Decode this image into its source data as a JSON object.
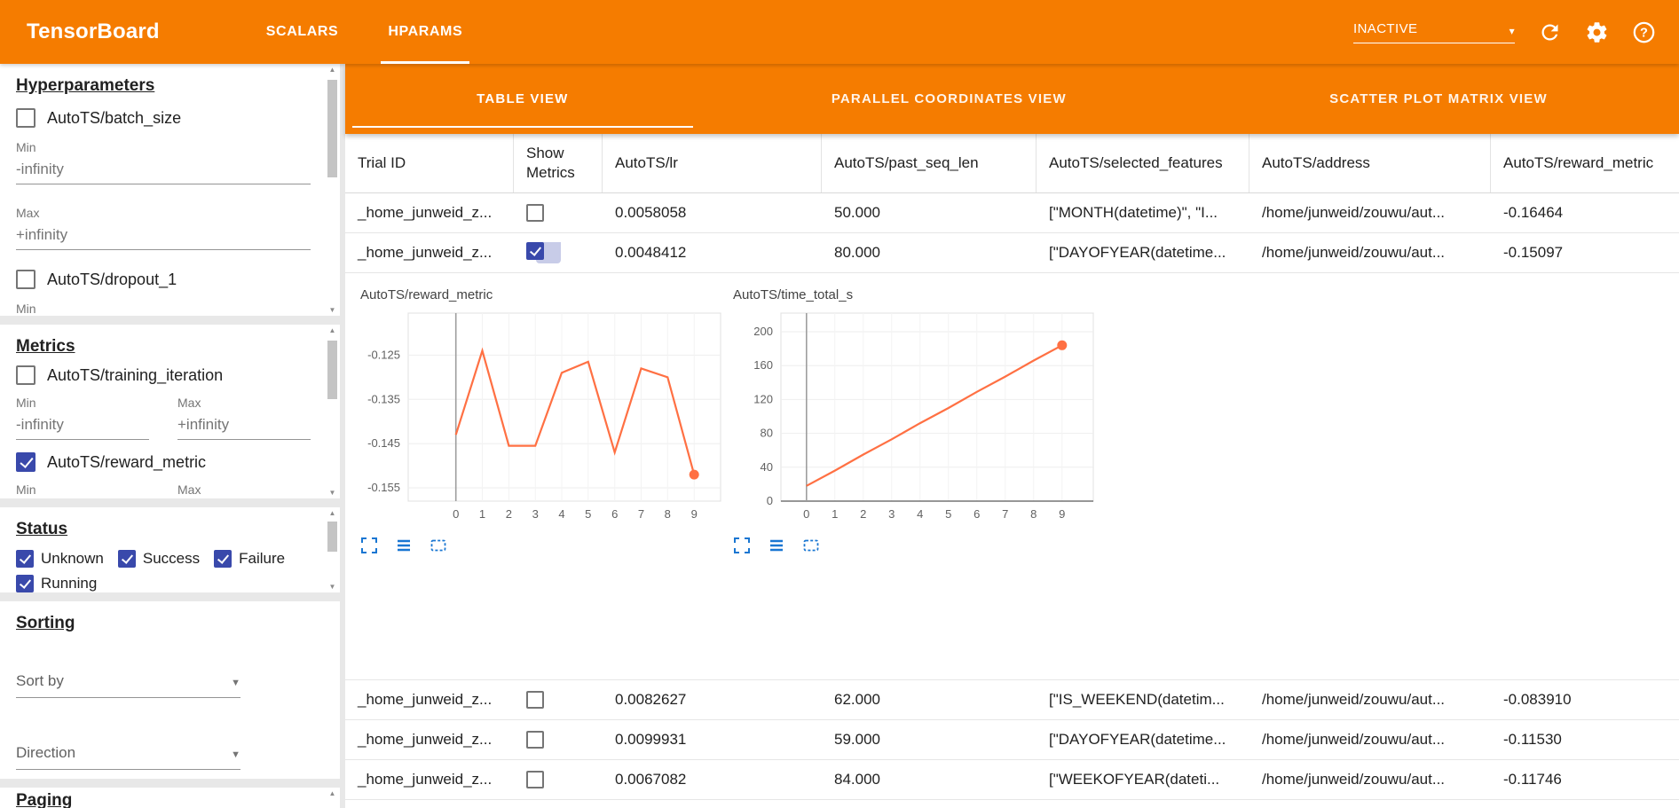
{
  "app": {
    "title": "TensorBoard",
    "nav": [
      {
        "label": "SCALARS",
        "active": false
      },
      {
        "label": "HPARAMS",
        "active": true
      }
    ],
    "reload_status": "INACTIVE"
  },
  "sidebar": {
    "hyperparameters": {
      "title": "Hyperparameters",
      "params": [
        {
          "label": "AutoTS/batch_size",
          "checked": false,
          "min_label": "Min",
          "min": "-infinity",
          "max_label": "Max",
          "max": "+infinity"
        },
        {
          "label": "AutoTS/dropout_1",
          "checked": false,
          "min_label": "Min"
        }
      ]
    },
    "metrics": {
      "title": "Metrics",
      "items": [
        {
          "label": "AutoTS/training_iteration",
          "checked": false,
          "min_label": "Min",
          "min": "-infinity",
          "max_label": "Max",
          "max": "+infinity"
        },
        {
          "label": "AutoTS/reward_metric",
          "checked": true,
          "min_label": "Min",
          "max_label": "Max"
        }
      ]
    },
    "status": {
      "title": "Status",
      "options": [
        {
          "label": "Unknown",
          "checked": true
        },
        {
          "label": "Success",
          "checked": true
        },
        {
          "label": "Failure",
          "checked": true
        },
        {
          "label": "Running",
          "checked": true
        }
      ]
    },
    "sorting": {
      "title": "Sorting",
      "sort_by": {
        "label": "Sort by"
      },
      "direction": {
        "label": "Direction"
      }
    },
    "paging": {
      "title": "Paging"
    }
  },
  "views": {
    "tabs": [
      {
        "label": "TABLE VIEW",
        "active": true
      },
      {
        "label": "PARALLEL COORDINATES VIEW",
        "active": false
      },
      {
        "label": "SCATTER PLOT MATRIX VIEW",
        "active": false
      }
    ]
  },
  "table": {
    "columns": [
      "Trial ID",
      "Show Metrics",
      "AutoTS/lr",
      "AutoTS/past_seq_len",
      "AutoTS/selected_features",
      "AutoTS/address",
      "AutoTS/reward_metric"
    ],
    "rows": [
      {
        "trial_id": "_home_junweid_z...",
        "show_metrics": false,
        "lr": "0.0058058",
        "past_seq_len": "50.000",
        "selected_features": "[\"MONTH(datetime)\", \"I...",
        "address": "/home/junweid/zouwu/aut...",
        "reward_metric": "-0.16464"
      },
      {
        "trial_id": "_home_junweid_z...",
        "show_metrics": true,
        "lr": "0.0048412",
        "past_seq_len": "80.000",
        "selected_features": "[\"DAYOFYEAR(datetime...",
        "address": "/home/junweid/zouwu/aut...",
        "reward_metric": "-0.15097"
      },
      {
        "trial_id": "_home_junweid_z...",
        "show_metrics": false,
        "lr": "0.0082627",
        "past_seq_len": "62.000",
        "selected_features": "[\"IS_WEEKEND(datetim...",
        "address": "/home/junweid/zouwu/aut...",
        "reward_metric": "-0.083910"
      },
      {
        "trial_id": "_home_junweid_z...",
        "show_metrics": false,
        "lr": "0.0099931",
        "past_seq_len": "59.000",
        "selected_features": "[\"DAYOFYEAR(datetime...",
        "address": "/home/junweid/zouwu/aut...",
        "reward_metric": "-0.11530"
      },
      {
        "trial_id": "_home_junweid_z...",
        "show_metrics": false,
        "lr": "0.0067082",
        "past_seq_len": "84.000",
        "selected_features": "[\"WEEKOFYEAR(dateti...",
        "address": "/home/junweid/zouwu/aut...",
        "reward_metric": "-0.11746"
      }
    ]
  },
  "chart_toolbar_icons": [
    "fit-to-screen-icon",
    "log-axis-icon",
    "drag-zoom-icon"
  ],
  "colors": {
    "accent_orange": "#f57c00",
    "line_orange": "#ff7043",
    "checkbox_indigo": "#3949ab",
    "tool_icon_blue": "#1976d2"
  },
  "chart_data": [
    {
      "type": "line",
      "title": "AutoTS/reward_metric",
      "x": [
        0,
        1,
        2,
        3,
        4,
        5,
        6,
        7,
        8,
        9
      ],
      "values": [
        -0.143,
        -0.124,
        -0.1455,
        -0.1455,
        -0.129,
        -0.1265,
        -0.147,
        -0.128,
        -0.13,
        -0.152
      ],
      "xlabel": "",
      "ylabel": "AutoTS/reward_metric",
      "xlim": [
        -1.8,
        10.0
      ],
      "ylim": [
        -0.158,
        -0.1155
      ],
      "yticks": [
        -0.155,
        -0.145,
        -0.135,
        -0.125
      ],
      "ytick_labels": [
        "-0.155",
        "-0.145",
        "-0.135",
        "-0.125"
      ],
      "xticks": [
        0,
        1,
        2,
        3,
        4,
        5,
        6,
        7,
        8,
        9
      ],
      "line_color": "#ff7043",
      "grid": true,
      "end_dot": true,
      "legend": "none"
    },
    {
      "type": "line",
      "title": "AutoTS/time_total_s",
      "x": [
        0,
        1,
        2,
        3,
        4,
        5,
        6,
        7,
        8,
        9
      ],
      "values": [
        18,
        36,
        55,
        73,
        92,
        110,
        129,
        147,
        166,
        184
      ],
      "xlabel": "",
      "ylabel": "AutoTS/time_total_s",
      "xlim": [
        -0.9,
        10.1
      ],
      "ylim": [
        0,
        222
      ],
      "yticks": [
        0,
        40,
        80,
        120,
        160,
        200
      ],
      "ytick_labels": [
        "0",
        "40",
        "80",
        "120",
        "160",
        "200"
      ],
      "xticks": [
        0,
        1,
        2,
        3,
        4,
        5,
        6,
        7,
        8,
        9
      ],
      "line_color": "#ff7043",
      "grid": true,
      "end_dot": true,
      "legend": "none"
    }
  ]
}
